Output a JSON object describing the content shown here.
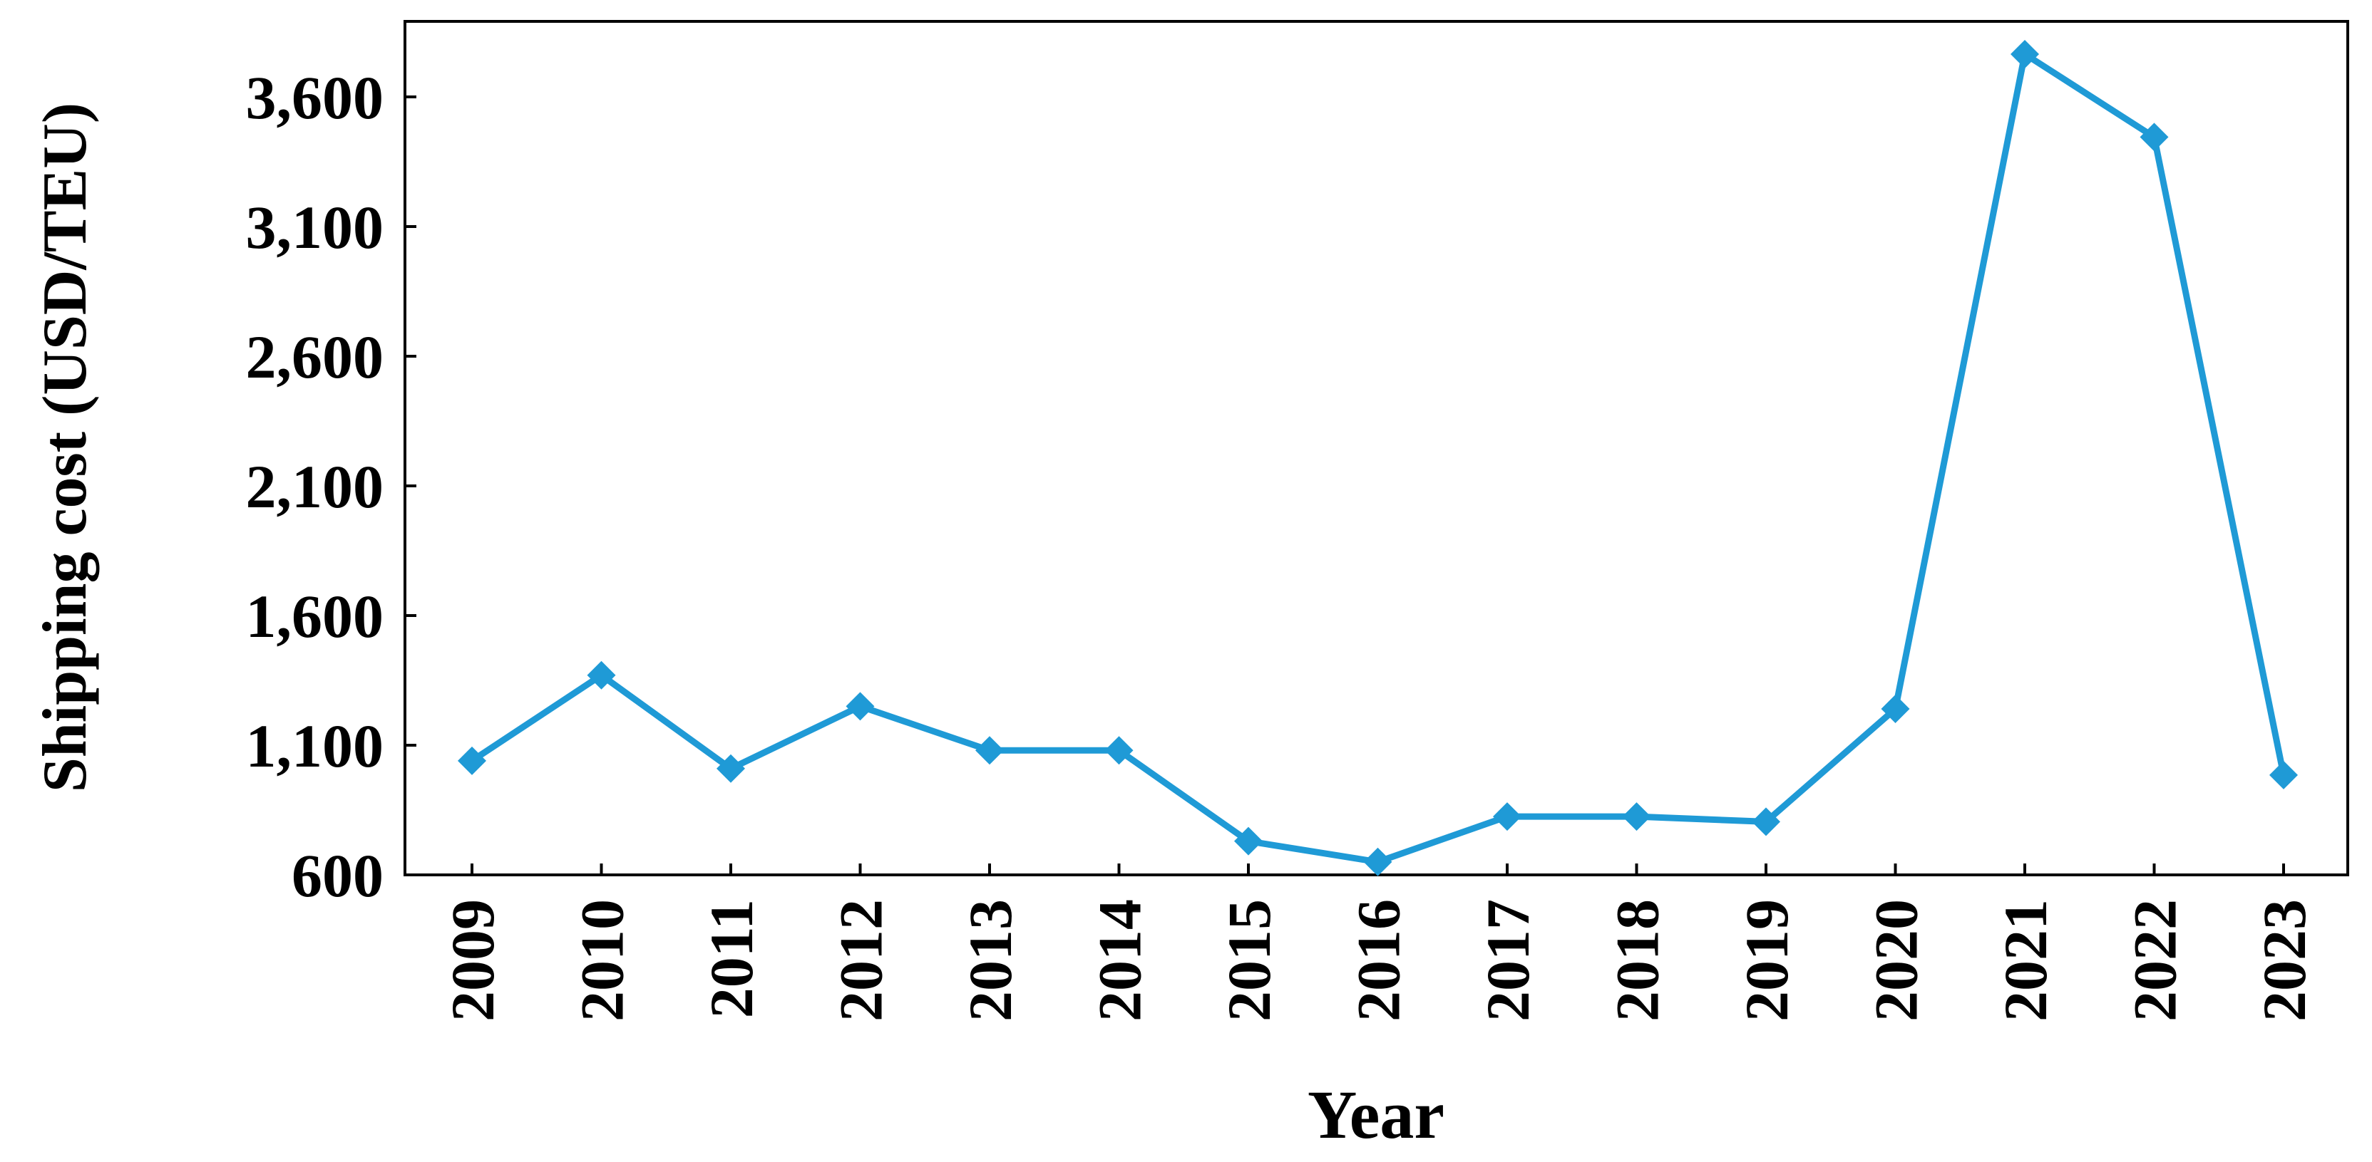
{
  "chart_data": {
    "type": "line",
    "title": "",
    "xlabel": "Year",
    "ylabel": "Shipping cost (USD/TEU)",
    "categories": [
      "2009",
      "2010",
      "2011",
      "2012",
      "2013",
      "2014",
      "2015",
      "2016",
      "2017",
      "2018",
      "2019",
      "2020",
      "2021",
      "2022",
      "2023"
    ],
    "series": [
      {
        "values": [
          1040,
          1370,
          1010,
          1250,
          1080,
          1080,
          730,
          650,
          825,
          825,
          805,
          1240,
          3765,
          3445,
          985
        ],
        "color": "#1f9ad6",
        "marker": "diamond"
      }
    ],
    "ylim": [
      600,
      3900
    ],
    "yticks": [
      600,
      1100,
      1600,
      2100,
      2600,
      3100,
      3600
    ],
    "ytick_labels": [
      "600",
      "1,100",
      "1,600",
      "2,100",
      "2,600",
      "3,100",
      "3,600"
    ],
    "grid": false,
    "legend": "none"
  }
}
